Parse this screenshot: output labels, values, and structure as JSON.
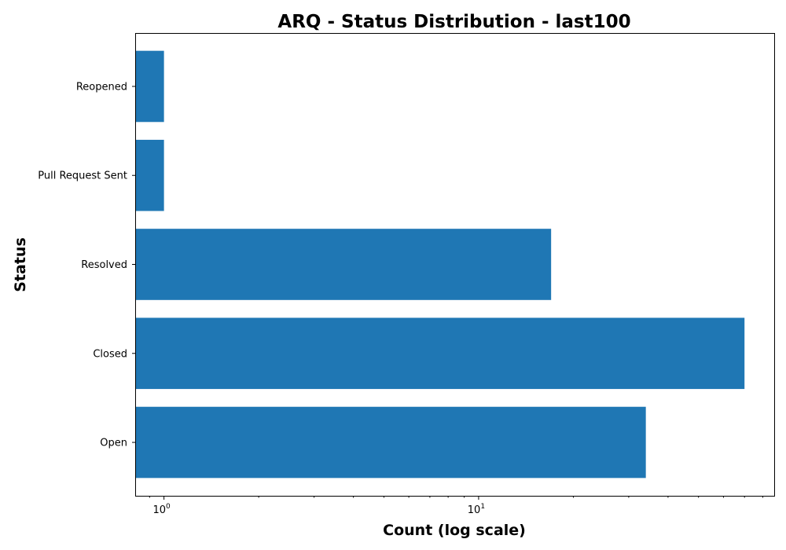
{
  "chart_data": {
    "type": "bar",
    "orientation": "horizontal",
    "title": "ARQ - Status Distribution - last100",
    "xlabel": "Count (log scale)",
    "ylabel": "Status",
    "x_scale": "log",
    "xlim": [
      0.81,
      87
    ],
    "x_ticks": [
      {
        "value": 1,
        "base": "10",
        "exp": "0"
      },
      {
        "value": 10,
        "base": "10",
        "exp": "1"
      }
    ],
    "categories": [
      "Open",
      "Closed",
      "Resolved",
      "Pull Request Sent",
      "Reopened"
    ],
    "values": [
      34,
      70,
      17,
      1,
      1
    ],
    "bar_color": "#1f77b4",
    "grid": false,
    "legend": "none"
  }
}
